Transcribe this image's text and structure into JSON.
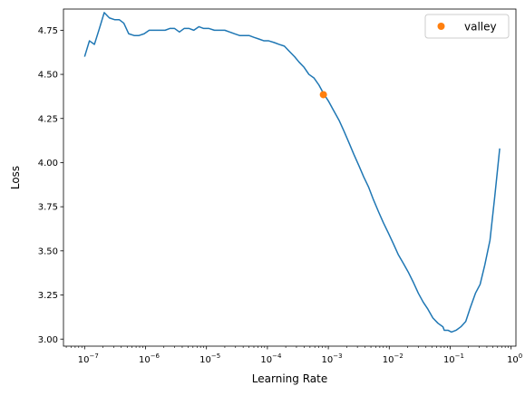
{
  "chart_data": {
    "type": "line",
    "title": "",
    "xlabel": "Learning Rate",
    "ylabel": "Loss",
    "xscale": "log",
    "xlim": [
      4.5e-08,
      1.2
    ],
    "ylim": [
      2.96,
      4.87
    ],
    "grid": false,
    "legend_position": "top-right",
    "x_ticks": [
      {
        "value": 1e-07,
        "base": "10",
        "exp": "−7"
      },
      {
        "value": 1e-06,
        "base": "10",
        "exp": "−6"
      },
      {
        "value": 1e-05,
        "base": "10",
        "exp": "−5"
      },
      {
        "value": 0.0001,
        "base": "10",
        "exp": "−4"
      },
      {
        "value": 0.001,
        "base": "10",
        "exp": "−3"
      },
      {
        "value": 0.01,
        "base": "10",
        "exp": "−2"
      },
      {
        "value": 0.1,
        "base": "10",
        "exp": "−1"
      },
      {
        "value": 1,
        "base": "10",
        "exp": "0"
      }
    ],
    "y_ticks": [
      {
        "value": 3.0,
        "label": "3.00"
      },
      {
        "value": 3.25,
        "label": "3.25"
      },
      {
        "value": 3.5,
        "label": "3.50"
      },
      {
        "value": 3.75,
        "label": "3.75"
      },
      {
        "value": 4.0,
        "label": "4.00"
      },
      {
        "value": 4.25,
        "label": "4.25"
      },
      {
        "value": 4.5,
        "label": "4.50"
      },
      {
        "value": 4.75,
        "label": "4.75"
      }
    ],
    "series": [
      {
        "color": "#1f77b4",
        "points": [
          [
            1e-07,
            4.6
          ],
          [
            1.2e-07,
            4.69
          ],
          [
            1.45e-07,
            4.67
          ],
          [
            1.75e-07,
            4.76
          ],
          [
            2.1e-07,
            4.85
          ],
          [
            2.55e-07,
            4.82
          ],
          [
            3.1e-07,
            4.81
          ],
          [
            3.7e-07,
            4.81
          ],
          [
            4.4e-07,
            4.79
          ],
          [
            5.3e-07,
            4.73
          ],
          [
            6.5e-07,
            4.72
          ],
          [
            7.8e-07,
            4.72
          ],
          [
            9.5e-07,
            4.73
          ],
          [
            1.15e-06,
            4.75
          ],
          [
            1.4e-06,
            4.75
          ],
          [
            1.7e-06,
            4.75
          ],
          [
            2.1e-06,
            4.75
          ],
          [
            2.5e-06,
            4.76
          ],
          [
            3e-06,
            4.76
          ],
          [
            3.6e-06,
            4.74
          ],
          [
            4.3e-06,
            4.76
          ],
          [
            5.2e-06,
            4.76
          ],
          [
            6.2e-06,
            4.75
          ],
          [
            7.5e-06,
            4.77
          ],
          [
            9e-06,
            4.76
          ],
          [
            1.1e-05,
            4.76
          ],
          [
            1.35e-05,
            4.75
          ],
          [
            1.6e-05,
            4.75
          ],
          [
            2e-05,
            4.75
          ],
          [
            2.4e-05,
            4.74
          ],
          [
            2.9e-05,
            4.73
          ],
          [
            3.5e-05,
            4.72
          ],
          [
            4.2e-05,
            4.72
          ],
          [
            5e-05,
            4.72
          ],
          [
            6e-05,
            4.71
          ],
          [
            7.3e-05,
            4.7
          ],
          [
            8.8e-05,
            4.69
          ],
          [
            0.000105,
            4.69
          ],
          [
            0.00013,
            4.68
          ],
          [
            0.000155,
            4.67
          ],
          [
            0.00019,
            4.66
          ],
          [
            0.00023,
            4.63
          ],
          [
            0.00028,
            4.6
          ],
          [
            0.00033,
            4.57
          ],
          [
            0.0004,
            4.54
          ],
          [
            0.00048,
            4.5
          ],
          [
            0.00058,
            4.48
          ],
          [
            0.0007,
            4.44
          ],
          [
            0.00084,
            4.39
          ],
          [
            0.001,
            4.35
          ],
          [
            0.0012,
            4.3
          ],
          [
            0.0015,
            4.24
          ],
          [
            0.0018,
            4.18
          ],
          [
            0.0022,
            4.11
          ],
          [
            0.0026,
            4.05
          ],
          [
            0.0032,
            3.98
          ],
          [
            0.0038,
            3.92
          ],
          [
            0.0046,
            3.86
          ],
          [
            0.0055,
            3.79
          ],
          [
            0.0067,
            3.72
          ],
          [
            0.008,
            3.66
          ],
          [
            0.0097,
            3.6
          ],
          [
            0.0117,
            3.54
          ],
          [
            0.014,
            3.48
          ],
          [
            0.017,
            3.43
          ],
          [
            0.0205,
            3.38
          ],
          [
            0.025,
            3.32
          ],
          [
            0.03,
            3.26
          ],
          [
            0.036,
            3.21
          ],
          [
            0.043,
            3.17
          ],
          [
            0.052,
            3.12
          ],
          [
            0.063,
            3.09
          ],
          [
            0.076,
            3.07
          ],
          [
            0.08,
            3.05
          ],
          [
            0.092,
            3.05
          ],
          [
            0.105,
            3.04
          ],
          [
            0.125,
            3.05
          ],
          [
            0.15,
            3.07
          ],
          [
            0.18,
            3.1
          ],
          [
            0.215,
            3.18
          ],
          [
            0.26,
            3.26
          ],
          [
            0.31,
            3.31
          ],
          [
            0.37,
            3.42
          ],
          [
            0.45,
            3.56
          ],
          [
            0.54,
            3.81
          ],
          [
            0.65,
            4.08
          ]
        ]
      },
      {
        "name": "valley",
        "color": "#ff7f0e",
        "marker": "circle",
        "points": [
          [
            0.00083,
            4.385
          ]
        ]
      }
    ]
  }
}
